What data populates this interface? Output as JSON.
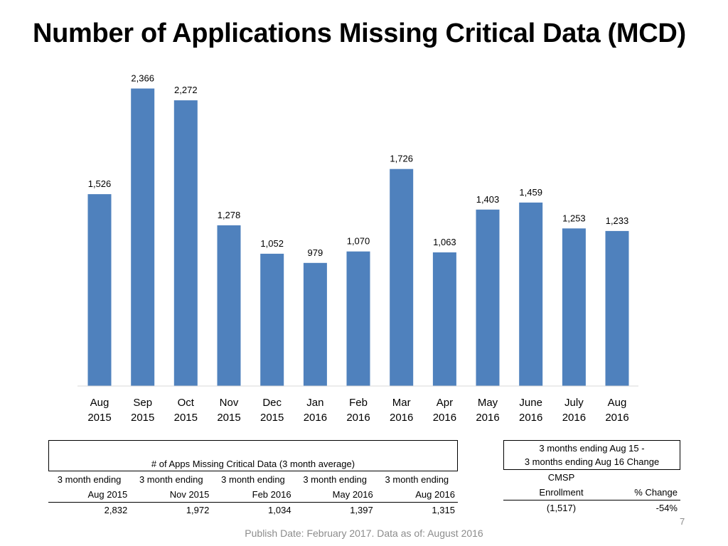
{
  "title": "Number of Applications Missing Critical Data (MCD)",
  "chart_data": {
    "type": "bar",
    "categories": [
      [
        "Aug",
        "2015"
      ],
      [
        "Sep",
        "2015"
      ],
      [
        "Oct",
        "2015"
      ],
      [
        "Nov",
        "2015"
      ],
      [
        "Dec",
        "2015"
      ],
      [
        "Jan",
        "2016"
      ],
      [
        "Feb",
        "2016"
      ],
      [
        "Mar",
        "2016"
      ],
      [
        "Apr",
        "2016"
      ],
      [
        "May",
        "2016"
      ],
      [
        "June",
        "2016"
      ],
      [
        "July",
        "2016"
      ],
      [
        "Aug",
        "2016"
      ]
    ],
    "values": [
      1526,
      2366,
      2272,
      1278,
      1052,
      979,
      1070,
      1726,
      1063,
      1403,
      1459,
      1253,
      1233
    ],
    "value_labels": [
      "1,526",
      "2,366",
      "2,272",
      "1,278",
      "1,052",
      "979",
      "1,070",
      "1,726",
      "1,063",
      "1,403",
      "1,459",
      "1,253",
      "1,233"
    ],
    "title": "",
    "xlabel": "",
    "ylabel": "",
    "ylim": [
      0,
      2500
    ],
    "bar_color": "#4f81bd",
    "grid": false,
    "legend": "none"
  },
  "left_table": {
    "header": "# of Apps Missing Critical Data (3 month average)",
    "columns": [
      {
        "line1": "3 month ending",
        "line2": "Aug 2015",
        "value": "2,832"
      },
      {
        "line1": "3 month ending",
        "line2": "Nov 2015",
        "value": "1,972"
      },
      {
        "line1": "3 month ending",
        "line2": "Feb 2016",
        "value": "1,034"
      },
      {
        "line1": "3 month ending",
        "line2": "May 2016",
        "value": "1,397"
      },
      {
        "line1": "3 month ending",
        "line2": "Aug 2016",
        "value": "1,315"
      }
    ]
  },
  "right_table": {
    "header_line1": "3 months ending Aug 15 -",
    "header_line2": "3 months ending Aug 16 Change",
    "col1_line1": "CMSP",
    "col1_line2": "Enrollment",
    "col2_line2": "% Change",
    "col1_value": "(1,517)",
    "col2_value": "-54%"
  },
  "footer": "Publish Date: February 2017. Data as of: August 2016",
  "page_number": "7"
}
